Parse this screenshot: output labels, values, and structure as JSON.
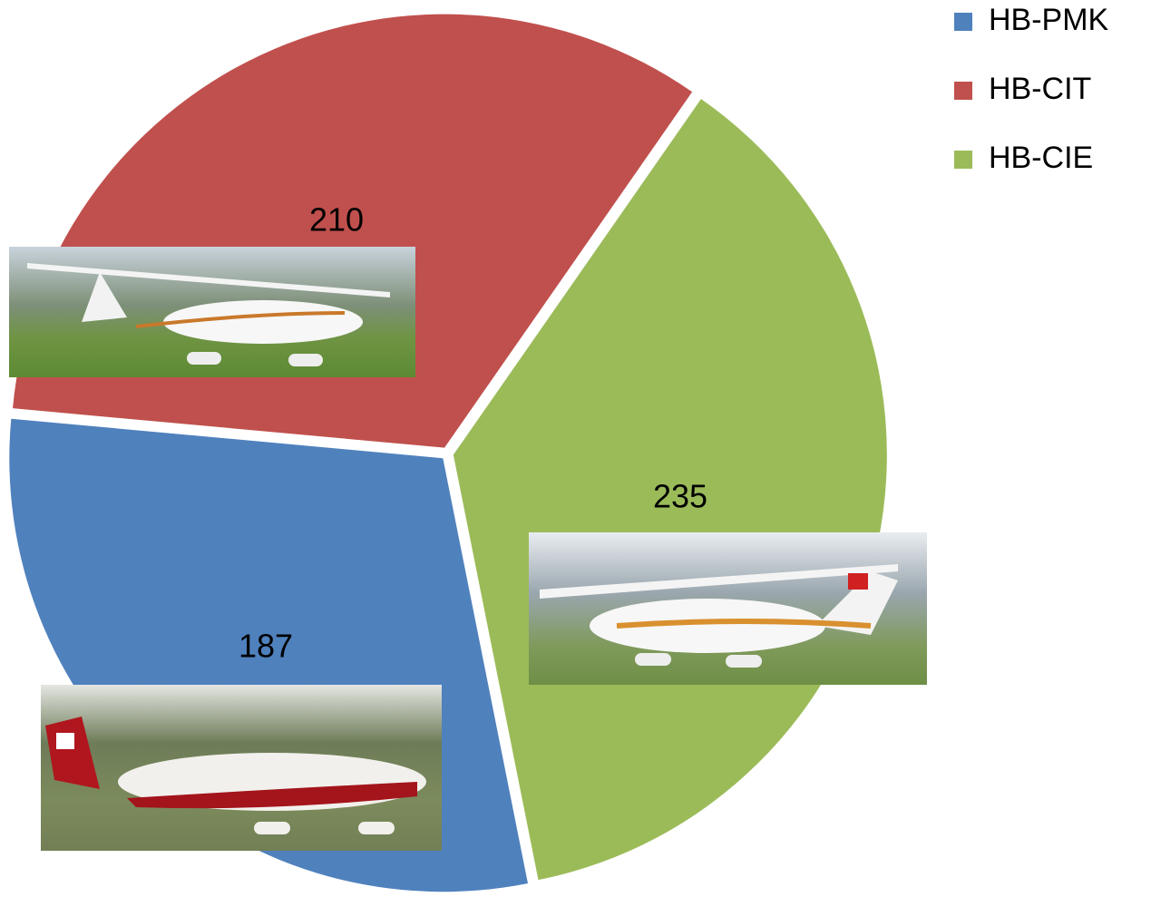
{
  "chart_data": {
    "type": "pie",
    "categories": [
      "HB-PMK",
      "HB-CIT",
      "HB-CIE"
    ],
    "values": [
      187,
      210,
      235
    ],
    "colors": [
      "#4f81bd",
      "#c0504d",
      "#9bbb59"
    ],
    "legend": "top-right"
  }
}
